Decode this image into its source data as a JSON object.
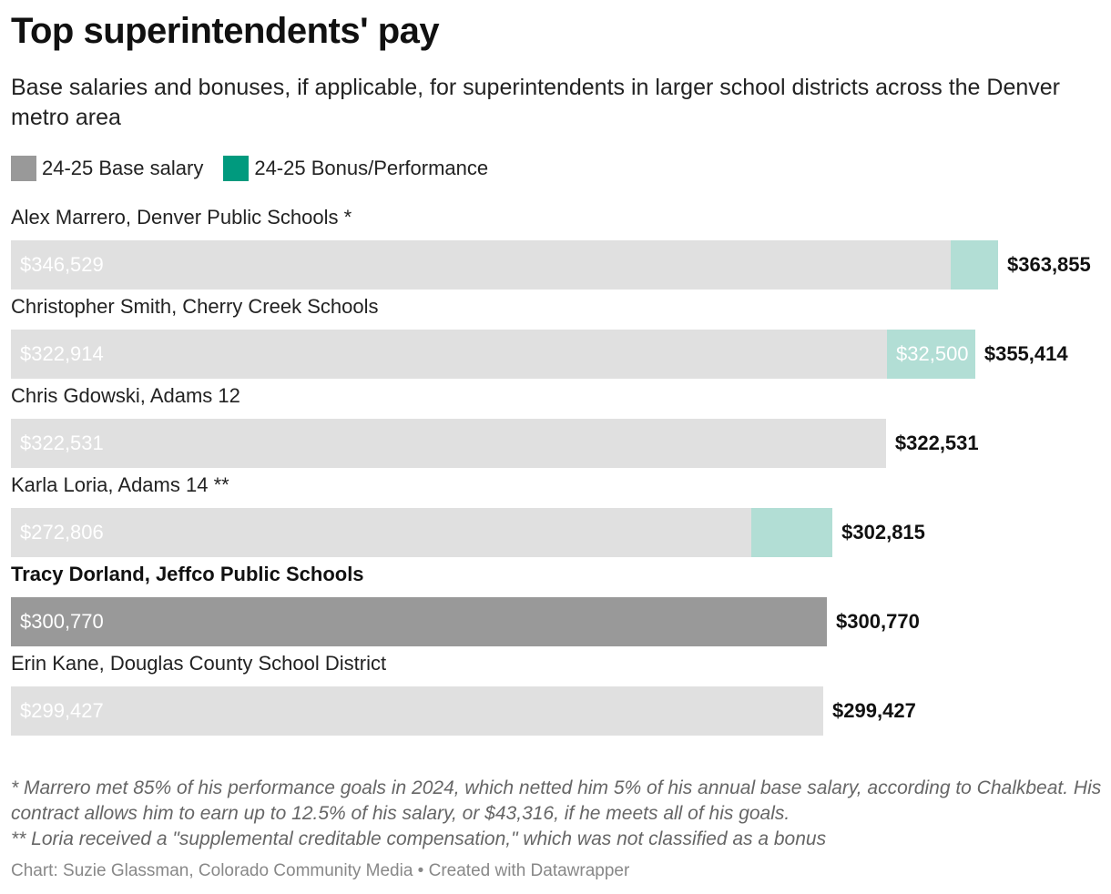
{
  "header": {
    "title": "Top superintendents' pay",
    "subtitle": "Base salaries and bonuses, if applicable, for superintendents in larger school districts across the Denver metro area"
  },
  "legend": {
    "items": [
      {
        "label": "24-25 Base salary",
        "color": "#999999"
      },
      {
        "label": "24-25 Bonus/Performance",
        "color": "#009a7e"
      }
    ]
  },
  "colors": {
    "base_highlight": "#999999",
    "base_muted": "#e0e0e0",
    "bonus_muted": "#b2ded5"
  },
  "chart_data": {
    "type": "bar",
    "orientation": "horizontal",
    "stacked": true,
    "categories": [
      "Alex Marrero, Denver Public Schools *",
      "Christopher Smith, Cherry Creek Schools",
      "Chris Gdowski, Adams 12",
      "Karla Loria, Adams 14 **",
      "Tracy Dorland, Jeffco Public Schools",
      "Erin Kane, Douglas County School District"
    ],
    "highlighted": [
      false,
      false,
      false,
      false,
      true,
      false
    ],
    "series": [
      {
        "name": "24-25 Base salary",
        "values": [
          346529,
          322914,
          322531,
          272806,
          300770,
          299427
        ]
      },
      {
        "name": "24-25 Bonus/Performance",
        "values": [
          17326,
          32500,
          0,
          30009,
          0,
          0
        ]
      }
    ],
    "base_labels": [
      "$346,529",
      "$322,914",
      "$322,531",
      "$272,806",
      "$300,770",
      "$299,427"
    ],
    "bonus_labels": [
      "",
      "$32,500",
      "",
      "",
      "",
      ""
    ],
    "totals": [
      363855,
      355414,
      322531,
      302815,
      300770,
      299427
    ],
    "total_labels": [
      "$363,855",
      "$355,414",
      "$322,531",
      "$302,815",
      "$300,770",
      "$299,427"
    ],
    "xlim": [
      0,
      363855
    ]
  },
  "notes": {
    "line1": "* Marrero met 85% of his performance goals in 2024, which netted him 5% of his annual base salary, according to Chalkbeat. His contract allows him to earn up to 12.5% of his salary, or $43,316, if he meets all of his goals.",
    "line2": "** Loria received a \"supplemental creditable compensation,\" which was not classified as a bonus"
  },
  "source": "Chart: Suzie Glassman, Colorado Community Media • Created with Datawrapper"
}
